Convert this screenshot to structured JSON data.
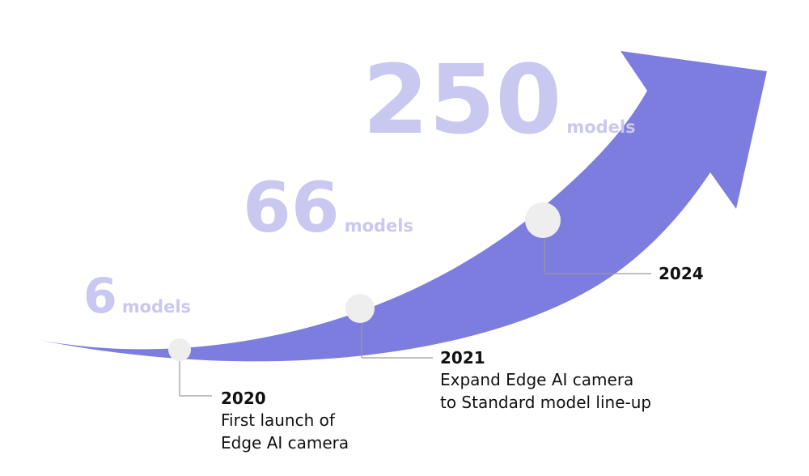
{
  "colors": {
    "arrow": "#7d7ddf",
    "count_text": "#c9c8f0",
    "marker_fill": "#eeeeee",
    "connector": "#9a9a9a",
    "text": "#111111"
  },
  "counts": [
    {
      "value": "6",
      "unit": "models"
    },
    {
      "value": "66",
      "unit": "models"
    },
    {
      "value": "250",
      "unit": "models"
    }
  ],
  "milestones": [
    {
      "year": "2020",
      "lines": [
        "First launch of",
        "Edge AI camera"
      ]
    },
    {
      "year": "2021",
      "lines": [
        "Expand Edge AI camera",
        "to Standard model line-up"
      ]
    },
    {
      "year": "2024",
      "lines": []
    }
  ]
}
